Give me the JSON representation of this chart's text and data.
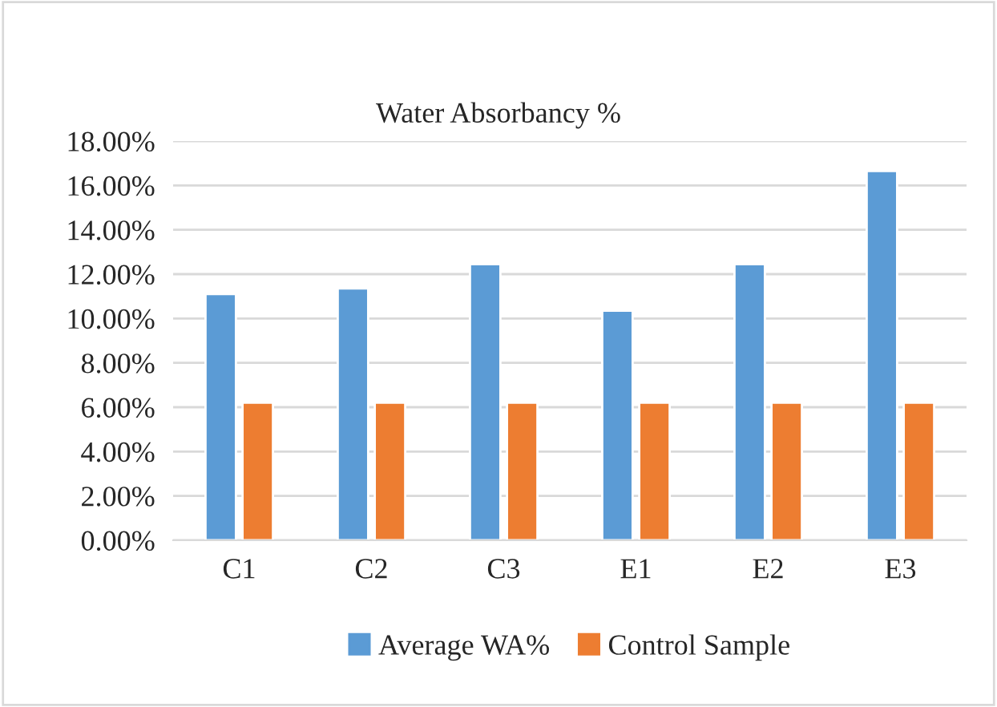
{
  "chart_data": {
    "type": "bar",
    "title": "Water Absorbancy %",
    "categories": [
      "C1",
      "C2",
      "C3",
      "E1",
      "E2",
      "E3"
    ],
    "series": [
      {
        "name": "Average WA%",
        "color": "#5b9bd5",
        "values": [
          11.1,
          11.35,
          12.45,
          10.35,
          12.45,
          16.65
        ]
      },
      {
        "name": "Control Sample",
        "color": "#ed7d31",
        "values": [
          6.2,
          6.2,
          6.2,
          6.2,
          6.2,
          6.2
        ]
      }
    ],
    "ylim": [
      0,
      18
    ],
    "yticks": [
      {
        "value": 0,
        "label": "0.00%"
      },
      {
        "value": 2,
        "label": "2.00%"
      },
      {
        "value": 4,
        "label": "4.00%"
      },
      {
        "value": 6,
        "label": "6.00%"
      },
      {
        "value": 8,
        "label": "8.00%"
      },
      {
        "value": 10,
        "label": "10.00%"
      },
      {
        "value": 12,
        "label": "12.00%"
      },
      {
        "value": 14,
        "label": "14.00%"
      },
      {
        "value": 16,
        "label": "16.00%"
      },
      {
        "value": 18,
        "label": "18.00%"
      }
    ],
    "grid": "y",
    "legend": "bottom"
  }
}
